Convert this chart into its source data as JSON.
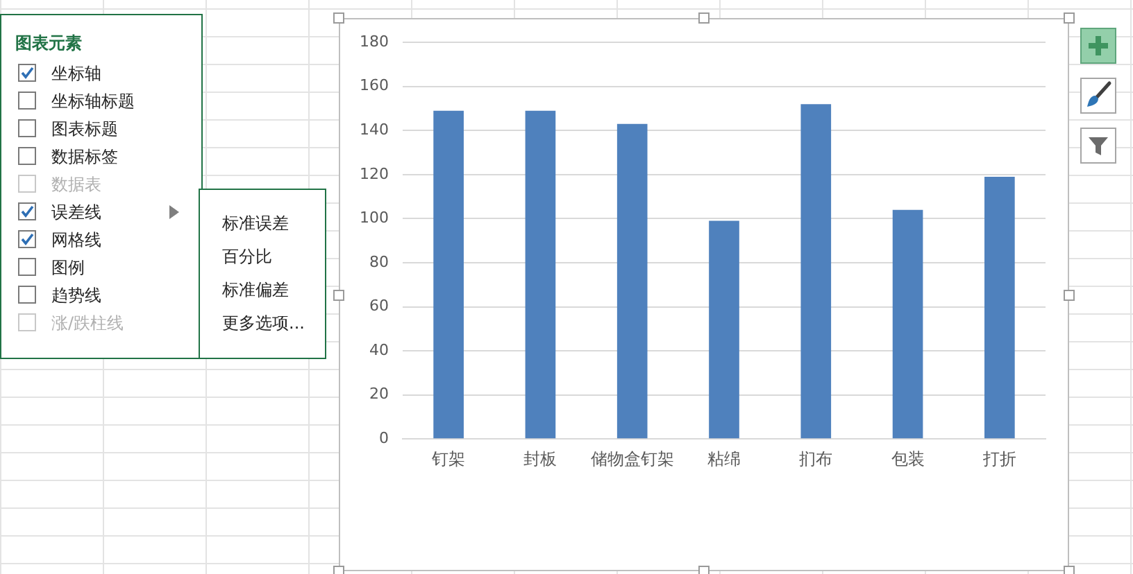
{
  "chart_data": {
    "type": "bar",
    "categories": [
      "钉架",
      "封板",
      "储物盒钉架",
      "粘绵",
      "扪布",
      "包装",
      "打折"
    ],
    "values": [
      149,
      149,
      143,
      99,
      152,
      104,
      119
    ],
    "color": "#4f81bd",
    "ylim": [
      0,
      180
    ],
    "yticks": [
      0,
      20,
      40,
      60,
      80,
      100,
      120,
      140,
      160,
      180
    ],
    "grid": "y",
    "annotations": [
      "图表元素",
      "坐标轴",
      "坐标轴标题",
      "图表标题",
      "数据标签",
      "数据表",
      "误差线",
      "网格线",
      "图例",
      "趋势线",
      "涨/跌柱线",
      "标准误差",
      "百分比",
      "标准偏差",
      "更多选项..."
    ]
  }
}
